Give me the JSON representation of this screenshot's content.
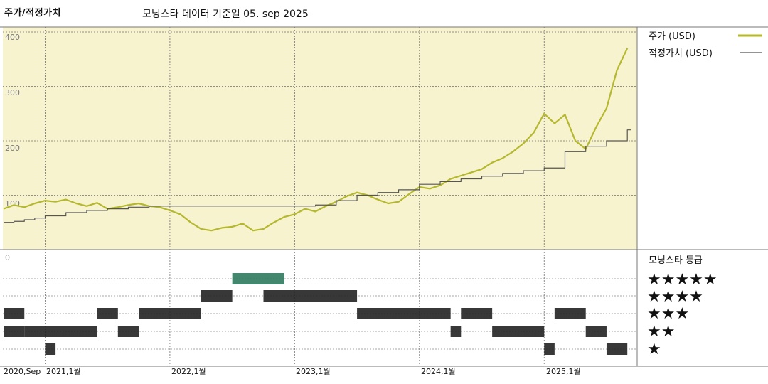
{
  "header": {
    "title": "주가/적정가치",
    "subtitle": "모닝스타 데이터 기준일 05. sep 2025"
  },
  "legend": {
    "price_label": "주가 (USD)",
    "fair_label": "적정가치 (USD)",
    "rating_title": "모닝스타 등급",
    "stars": [
      "★★★★★",
      "★★★★",
      "★★★",
      "★★",
      "★"
    ]
  },
  "colors": {
    "price": "#b5b82e",
    "fair": "#555555",
    "plot_bg": "#f7f3cf",
    "grid": "#6f6f6f",
    "rating_bar": "#222222",
    "rating_5": "#2f7a5e"
  },
  "chart_data": {
    "type": "line",
    "x_start": "2020-09",
    "x_end": "2025-09",
    "xticks": [
      "2020,Sep",
      "2021,1월",
      "2022,1월",
      "2023,1월",
      "2024,1월",
      "2025,1월"
    ],
    "yticks": [
      "400",
      "300",
      "200",
      "100"
    ],
    "rating_y_label": "0",
    "ylim": [
      0,
      400
    ],
    "series": [
      {
        "name": "주가 (USD)",
        "x": [
          "2020-09",
          "2020-10",
          "2020-11",
          "2020-12",
          "2021-01",
          "2021-02",
          "2021-03",
          "2021-04",
          "2021-05",
          "2021-06",
          "2021-07",
          "2021-08",
          "2021-09",
          "2021-10",
          "2021-11",
          "2021-12",
          "2022-01",
          "2022-02",
          "2022-03",
          "2022-04",
          "2022-05",
          "2022-06",
          "2022-07",
          "2022-08",
          "2022-09",
          "2022-10",
          "2022-11",
          "2022-12",
          "2023-01",
          "2023-02",
          "2023-03",
          "2023-04",
          "2023-05",
          "2023-06",
          "2023-07",
          "2023-08",
          "2023-09",
          "2023-10",
          "2023-11",
          "2023-12",
          "2024-01",
          "2024-02",
          "2024-03",
          "2024-04",
          "2024-05",
          "2024-06",
          "2024-07",
          "2024-08",
          "2024-09",
          "2024-10",
          "2024-11",
          "2024-12",
          "2025-01",
          "2025-02",
          "2025-03",
          "2025-04",
          "2025-05",
          "2025-06",
          "2025-07",
          "2025-08",
          "2025-09"
        ],
        "values": [
          75,
          82,
          78,
          85,
          90,
          88,
          92,
          85,
          80,
          86,
          75,
          78,
          82,
          85,
          80,
          78,
          72,
          65,
          50,
          38,
          35,
          40,
          42,
          48,
          35,
          38,
          50,
          60,
          65,
          75,
          70,
          80,
          88,
          98,
          105,
          100,
          92,
          85,
          88,
          102,
          115,
          112,
          118,
          130,
          136,
          142,
          148,
          160,
          168,
          180,
          195,
          215,
          250,
          232,
          248,
          200,
          185,
          225,
          260,
          330,
          370
        ],
        "color": "#b5b82e"
      },
      {
        "name": "적정가치 (USD)",
        "x": [
          "2020-09",
          "2020-10",
          "2020-11",
          "2020-12",
          "2021-01",
          "2021-03",
          "2021-05",
          "2021-07",
          "2021-09",
          "2021-11",
          "2022-01",
          "2022-04",
          "2022-07",
          "2022-10",
          "2023-01",
          "2023-03",
          "2023-05",
          "2023-07",
          "2023-09",
          "2023-11",
          "2024-01",
          "2024-03",
          "2024-05",
          "2024-07",
          "2024-09",
          "2024-11",
          "2025-01",
          "2025-03",
          "2025-05",
          "2025-07",
          "2025-09"
        ],
        "values": [
          50,
          52,
          55,
          58,
          62,
          68,
          72,
          75,
          78,
          80,
          80,
          80,
          80,
          80,
          80,
          82,
          90,
          100,
          105,
          110,
          120,
          125,
          130,
          135,
          140,
          145,
          150,
          180,
          190,
          200,
          220
        ],
        "color": "#555555"
      }
    ],
    "ratings": {
      "levels": [
        "5",
        "4",
        "3",
        "2",
        "1"
      ],
      "periods": [
        {
          "stars": 2,
          "start": "2020-09",
          "end": "2020-11"
        },
        {
          "stars": 3,
          "start": "2020-09",
          "end": "2020-11"
        },
        {
          "stars": 2,
          "start": "2020-11",
          "end": "2021-06"
        },
        {
          "stars": 1,
          "start": "2021-01",
          "end": "2021-02"
        },
        {
          "stars": 3,
          "start": "2021-06",
          "end": "2021-08"
        },
        {
          "stars": 2,
          "start": "2021-08",
          "end": "2021-10"
        },
        {
          "stars": 3,
          "start": "2021-10",
          "end": "2022-04"
        },
        {
          "stars": 4,
          "start": "2022-04",
          "end": "2022-07"
        },
        {
          "stars": 5,
          "start": "2022-07",
          "end": "2022-12"
        },
        {
          "stars": 4,
          "start": "2022-10",
          "end": "2023-07"
        },
        {
          "stars": 3,
          "start": "2023-07",
          "end": "2024-04"
        },
        {
          "stars": 2,
          "start": "2024-04",
          "end": "2024-05"
        },
        {
          "stars": 3,
          "start": "2024-05",
          "end": "2024-08"
        },
        {
          "stars": 2,
          "start": "2024-08",
          "end": "2025-01"
        },
        {
          "stars": 1,
          "start": "2025-01",
          "end": "2025-02"
        },
        {
          "stars": 3,
          "start": "2025-02",
          "end": "2025-05"
        },
        {
          "stars": 2,
          "start": "2025-05",
          "end": "2025-07"
        },
        {
          "stars": 1,
          "start": "2025-07",
          "end": "2025-09"
        }
      ]
    }
  }
}
